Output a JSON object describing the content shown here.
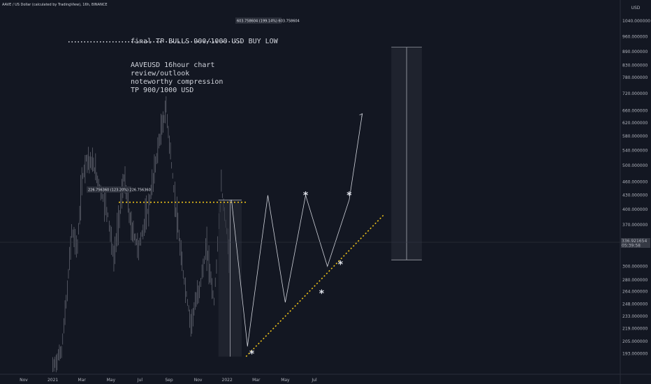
{
  "header": {
    "symbol_line": "AAVE / US Dollar (calculated by TradingView), 16h, BINANCE"
  },
  "colors": {
    "background": "#131722",
    "candles": "#6a6d78",
    "accent_yellow": "#f0c419",
    "annotation": "#d1d4dc",
    "axis_text": "#b2b5be"
  },
  "chart_data": {
    "type": "line",
    "title": "",
    "xlabel": "",
    "ylabel": "",
    "y_unit": "USD",
    "scale": "log",
    "ylim": [
      180,
      1100
    ],
    "grid": false,
    "x_ticks": [
      "Nov",
      "2021",
      "Mar",
      "May",
      "Jul",
      "Sep",
      "Nov",
      "2022",
      "Mar",
      "May",
      "Jul"
    ],
    "y_ticks": [
      "1040.000000",
      "960.000000",
      "890.000000",
      "830.000000",
      "780.000000",
      "720.000000",
      "660.000000",
      "620.000000",
      "580.000000",
      "540.000000",
      "500.000000",
      "460.000000",
      "430.000000",
      "400.000000",
      "370.000000",
      "340.000000",
      "300.000000",
      "280.000000",
      "264.000000",
      "248.000000",
      "233.000000",
      "219.000000",
      "205.000000",
      "193.000000"
    ],
    "current_price_label": "336.921654",
    "current_countdown_label": "05:39:58",
    "price_series": {
      "name": "AAVEUSD",
      "x_month_index": [
        2.0,
        2.6,
        3.0,
        3.3,
        3.7,
        4.0,
        4.3,
        4.8,
        5.3,
        5.8,
        6.2,
        6.9,
        7.4,
        7.9,
        8.6,
        9.3,
        9.8,
        10.4,
        10.9,
        11.5,
        12.1,
        12.6,
        13.1,
        13.6,
        14.2
      ],
      "values": [
        180,
        196,
        265,
        360,
        330,
        460,
        520,
        500,
        440,
        390,
        310,
        470,
        365,
        330,
        405,
        560,
        670,
        420,
        300,
        225,
        270,
        330,
        250,
        450,
        310
      ]
    },
    "annotations": {
      "resistance_level": 415,
      "support_trendline": {
        "from": {
          "x_month_index": 15.3,
          "value": 190
        },
        "to": {
          "x_month_index": 24.8,
          "value": 390
        }
      },
      "target_level": 935,
      "projection_path": {
        "x_month_index": [
          14.3,
          15.4,
          16.8,
          18.0,
          19.4,
          20.9,
          22.4,
          23.3
        ],
        "values": [
          420,
          200,
          430,
          250,
          430,
          300,
          420,
          650
        ]
      },
      "range_box_small": {
        "x_month_index": [
          13.4,
          15.0
        ],
        "from_value": 190,
        "to_value": 420,
        "label": "226.756360 (123.20%) 226.756360"
      },
      "range_box_large": {
        "x_month_index": [
          25.3,
          27.4
        ],
        "from_value": 310,
        "to_value": 910,
        "label": "603.758604 (199.14%) 603.758604"
      },
      "stars": [
        {
          "x_month_index": 19.4,
          "value": 430
        },
        {
          "x_month_index": 22.4,
          "value": 430
        },
        {
          "x_month_index": 15.7,
          "value": 193
        },
        {
          "x_month_index": 20.5,
          "value": 262
        },
        {
          "x_month_index": 21.8,
          "value": 303
        }
      ]
    },
    "text_notes": {
      "target_note": "final TP BULLS 900/1000 USD BUY LOW",
      "outlook_lines": [
        "AAVEUSD 16hour chart",
        "review/outlook",
        "noteworthy compression",
        "TP 900/1000 USD"
      ]
    }
  }
}
